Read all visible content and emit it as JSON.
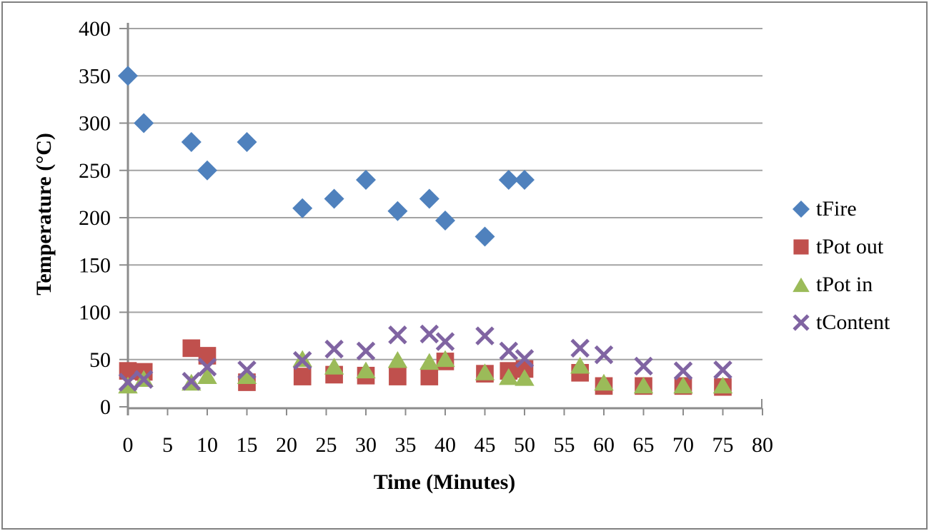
{
  "chart_data": {
    "type": "scatter",
    "title": "",
    "xlabel": "Time (Minutes)",
    "ylabel": "Temperature (°C)",
    "xlim": [
      0,
      80
    ],
    "xtick_step": 5,
    "ylim": [
      0,
      400
    ],
    "ytick_step": 50,
    "grid": "horizontal",
    "legend_position": "right",
    "grid_color": "#A3A3A3",
    "axis_color": "#8C8C8C",
    "text_color": "#000000",
    "series": [
      {
        "name": "tFire",
        "marker": "diamond",
        "color": "#4F81BD",
        "points": [
          [
            0,
            350
          ],
          [
            2,
            300
          ],
          [
            8,
            280
          ],
          [
            10,
            250
          ],
          [
            15,
            280
          ],
          [
            22,
            210
          ],
          [
            26,
            220
          ],
          [
            30,
            240
          ],
          [
            34,
            207
          ],
          [
            38,
            220
          ],
          [
            40,
            197
          ],
          [
            45,
            180
          ],
          [
            48,
            240
          ],
          [
            50,
            240
          ]
        ]
      },
      {
        "name": "tPot out",
        "marker": "square",
        "color": "#C0504D",
        "points": [
          [
            0,
            38
          ],
          [
            2,
            37
          ],
          [
            8,
            62
          ],
          [
            10,
            54
          ],
          [
            15,
            26
          ],
          [
            22,
            32
          ],
          [
            26,
            34
          ],
          [
            30,
            33
          ],
          [
            34,
            32
          ],
          [
            38,
            32
          ],
          [
            40,
            48
          ],
          [
            45,
            35
          ],
          [
            48,
            38
          ],
          [
            50,
            40
          ],
          [
            57,
            36
          ],
          [
            60,
            22
          ],
          [
            65,
            22
          ],
          [
            70,
            22
          ],
          [
            75,
            21
          ]
        ]
      },
      {
        "name": "tPot in",
        "marker": "triangle",
        "color": "#9BBB59",
        "points": [
          [
            0,
            23
          ],
          [
            2,
            30
          ],
          [
            8,
            26
          ],
          [
            10,
            33
          ],
          [
            15,
            33
          ],
          [
            22,
            51
          ],
          [
            26,
            43
          ],
          [
            30,
            39
          ],
          [
            34,
            50
          ],
          [
            38,
            48
          ],
          [
            40,
            51
          ],
          [
            45,
            37
          ],
          [
            48,
            32
          ],
          [
            50,
            31
          ],
          [
            57,
            44
          ],
          [
            60,
            26
          ],
          [
            65,
            23
          ],
          [
            70,
            23
          ],
          [
            75,
            23
          ]
        ]
      },
      {
        "name": "tContent",
        "marker": "x",
        "color": "#8064A2",
        "points": [
          [
            0,
            26
          ],
          [
            2,
            29
          ],
          [
            8,
            27
          ],
          [
            10,
            42
          ],
          [
            15,
            39
          ],
          [
            22,
            49
          ],
          [
            26,
            61
          ],
          [
            30,
            59
          ],
          [
            34,
            76
          ],
          [
            38,
            77
          ],
          [
            40,
            69
          ],
          [
            45,
            75
          ],
          [
            48,
            59
          ],
          [
            50,
            51
          ],
          [
            57,
            62
          ],
          [
            60,
            55
          ],
          [
            65,
            43
          ],
          [
            70,
            38
          ],
          [
            75,
            39
          ]
        ]
      }
    ]
  }
}
